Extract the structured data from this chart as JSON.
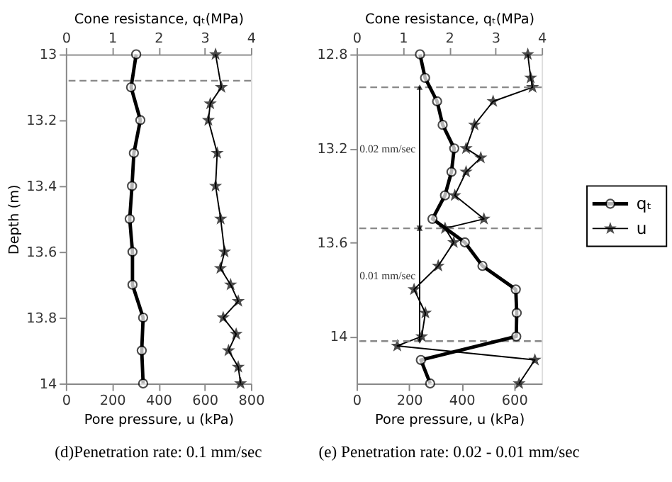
{
  "chart_data": [
    {
      "type": "line",
      "title": "(d)Penetration rate: 0.1 mm/sec",
      "xlabel": "Pore pressure, u (kPa)",
      "x2label": "Cone resistance, qₜ(MPa)",
      "ylabel": "Depth (m)",
      "xlim": [
        0,
        800
      ],
      "xticks": [
        0,
        200,
        400,
        600,
        800
      ],
      "x2lim": [
        0,
        4
      ],
      "x2ticks": [
        0,
        1,
        2,
        3,
        4
      ],
      "ylim": [
        14,
        13
      ],
      "yticks": [
        13,
        13.2,
        13.4,
        13.6,
        13.8,
        14
      ],
      "legend": false,
      "ref_lines": [
        {
          "axis": "y",
          "value": 13.08,
          "color": "#888888",
          "line_style": "dashed"
        }
      ],
      "series": [
        {
          "color": "#000000",
          "axis": "x2",
          "marker": "circle",
          "x": [
            1.52,
            1.41,
            1.61,
            1.47,
            1.43,
            1.38,
            1.44,
            1.44,
            1.67,
            1.64,
            1.67
          ],
          "values": [
            13.0,
            13.1,
            13.2,
            13.3,
            13.4,
            13.5,
            13.6,
            13.7,
            13.8,
            13.9,
            14.0
          ]
        },
        {
          "color": "#000000",
          "marker": "star",
          "x": [
            647,
            672,
            624,
            616,
            654,
            647,
            669,
            686,
            668,
            712,
            745,
            680,
            736,
            703,
            745,
            755
          ],
          "values": [
            13.0,
            13.1,
            13.15,
            13.2,
            13.3,
            13.4,
            13.5,
            13.6,
            13.65,
            13.7,
            13.75,
            13.8,
            13.85,
            13.9,
            13.95,
            14.0
          ]
        }
      ]
    },
    {
      "type": "line",
      "title": "(e) Penetration rate: 0.02 - 0.01 mm/sec",
      "xlabel": "Pore pressure, u (kPa)",
      "x2label": "Cone resistance, qₜ(MPa)",
      "xlim": [
        0,
        705
      ],
      "xticks": [
        0,
        200,
        400,
        600
      ],
      "x2lim": [
        0,
        4
      ],
      "x2ticks": [
        0,
        1,
        2,
        3,
        4
      ],
      "ylim": [
        14.2,
        12.8
      ],
      "yticks": [
        12.8,
        13.2,
        13.6,
        14
      ],
      "legend": "right",
      "ref_lines": [
        {
          "axis": "y",
          "value": 12.94,
          "color": "#888888",
          "line_style": "dashed"
        },
        {
          "axis": "y",
          "value": 13.54,
          "color": "#888888",
          "line_style": "dashed"
        },
        {
          "axis": "y",
          "value": 14.02,
          "color": "#888888",
          "line_style": "dashed"
        }
      ],
      "annotations": [
        "0.02 mm/sec",
        "0.01 mm/sec"
      ],
      "series": [
        {
          "name": "qₜ",
          "color": "#000000",
          "axis": "x2",
          "marker": "circle",
          "x": [
            1.37,
            1.48,
            1.74,
            1.86,
            2.11,
            2.05,
            1.91,
            1.64,
            2.34,
            2.72,
            3.44,
            3.46,
            3.45,
            1.39,
            1.59
          ],
          "values": [
            12.8,
            12.9,
            13.0,
            13.1,
            13.2,
            13.3,
            13.4,
            13.5,
            13.6,
            13.7,
            13.8,
            13.9,
            14.0,
            14.1,
            14.2
          ]
        },
        {
          "name": "u",
          "color": "#000000",
          "marker": "star",
          "x": [
            652,
            663,
            670,
            520,
            449,
            417,
            473,
            417,
            374,
            485,
            337,
            370,
            311,
            219,
            262,
            248,
            155,
            679,
            619
          ],
          "values": [
            12.8,
            12.9,
            12.94,
            13.0,
            13.1,
            13.2,
            13.24,
            13.3,
            13.4,
            13.5,
            13.54,
            13.6,
            13.7,
            13.8,
            13.9,
            14.0,
            14.04,
            14.1,
            14.2
          ]
        }
      ]
    }
  ]
}
